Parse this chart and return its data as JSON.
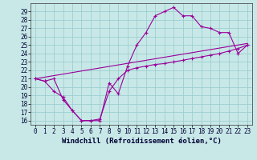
{
  "xlabel": "Windchill (Refroidissement éolien,°C)",
  "xlim": [
    -0.5,
    23.5
  ],
  "ylim": [
    15.5,
    30.0
  ],
  "yticks": [
    16,
    17,
    18,
    19,
    20,
    21,
    22,
    23,
    24,
    25,
    26,
    27,
    28,
    29
  ],
  "xticks": [
    0,
    1,
    2,
    3,
    4,
    5,
    6,
    7,
    8,
    9,
    10,
    11,
    12,
    13,
    14,
    15,
    16,
    17,
    18,
    19,
    20,
    21,
    22,
    23
  ],
  "bg_color": "#c8e8e8",
  "grid_color": "#9ecece",
  "line_color": "#990099",
  "line1_x": [
    0,
    1,
    2,
    3,
    4,
    5,
    6,
    7,
    8,
    9,
    10,
    11,
    12,
    13,
    14,
    15,
    16,
    17,
    18,
    19,
    20,
    21,
    22,
    23
  ],
  "line1_y": [
    21.0,
    20.7,
    21.0,
    18.5,
    17.2,
    16.0,
    16.0,
    16.0,
    20.5,
    19.2,
    22.5,
    25.0,
    26.5,
    28.5,
    29.0,
    29.5,
    28.5,
    28.5,
    27.2,
    27.0,
    26.5,
    26.5,
    24.0,
    25.0
  ],
  "line2_x": [
    0,
    1,
    2,
    3,
    4,
    5,
    6,
    7,
    8,
    9,
    10,
    11,
    12,
    13,
    14,
    15,
    16,
    17,
    18,
    19,
    20,
    21,
    22,
    23
  ],
  "line2_y": [
    21.0,
    20.7,
    19.5,
    18.8,
    17.2,
    16.0,
    16.0,
    16.2,
    19.5,
    21.0,
    22.0,
    22.3,
    22.5,
    22.7,
    22.8,
    23.0,
    23.2,
    23.4,
    23.6,
    23.8,
    24.0,
    24.3,
    24.6,
    25.0
  ],
  "line3_x": [
    0,
    23
  ],
  "line3_y": [
    21.0,
    25.2
  ],
  "fontsize_tick": 5.5,
  "fontsize_label": 6.5
}
